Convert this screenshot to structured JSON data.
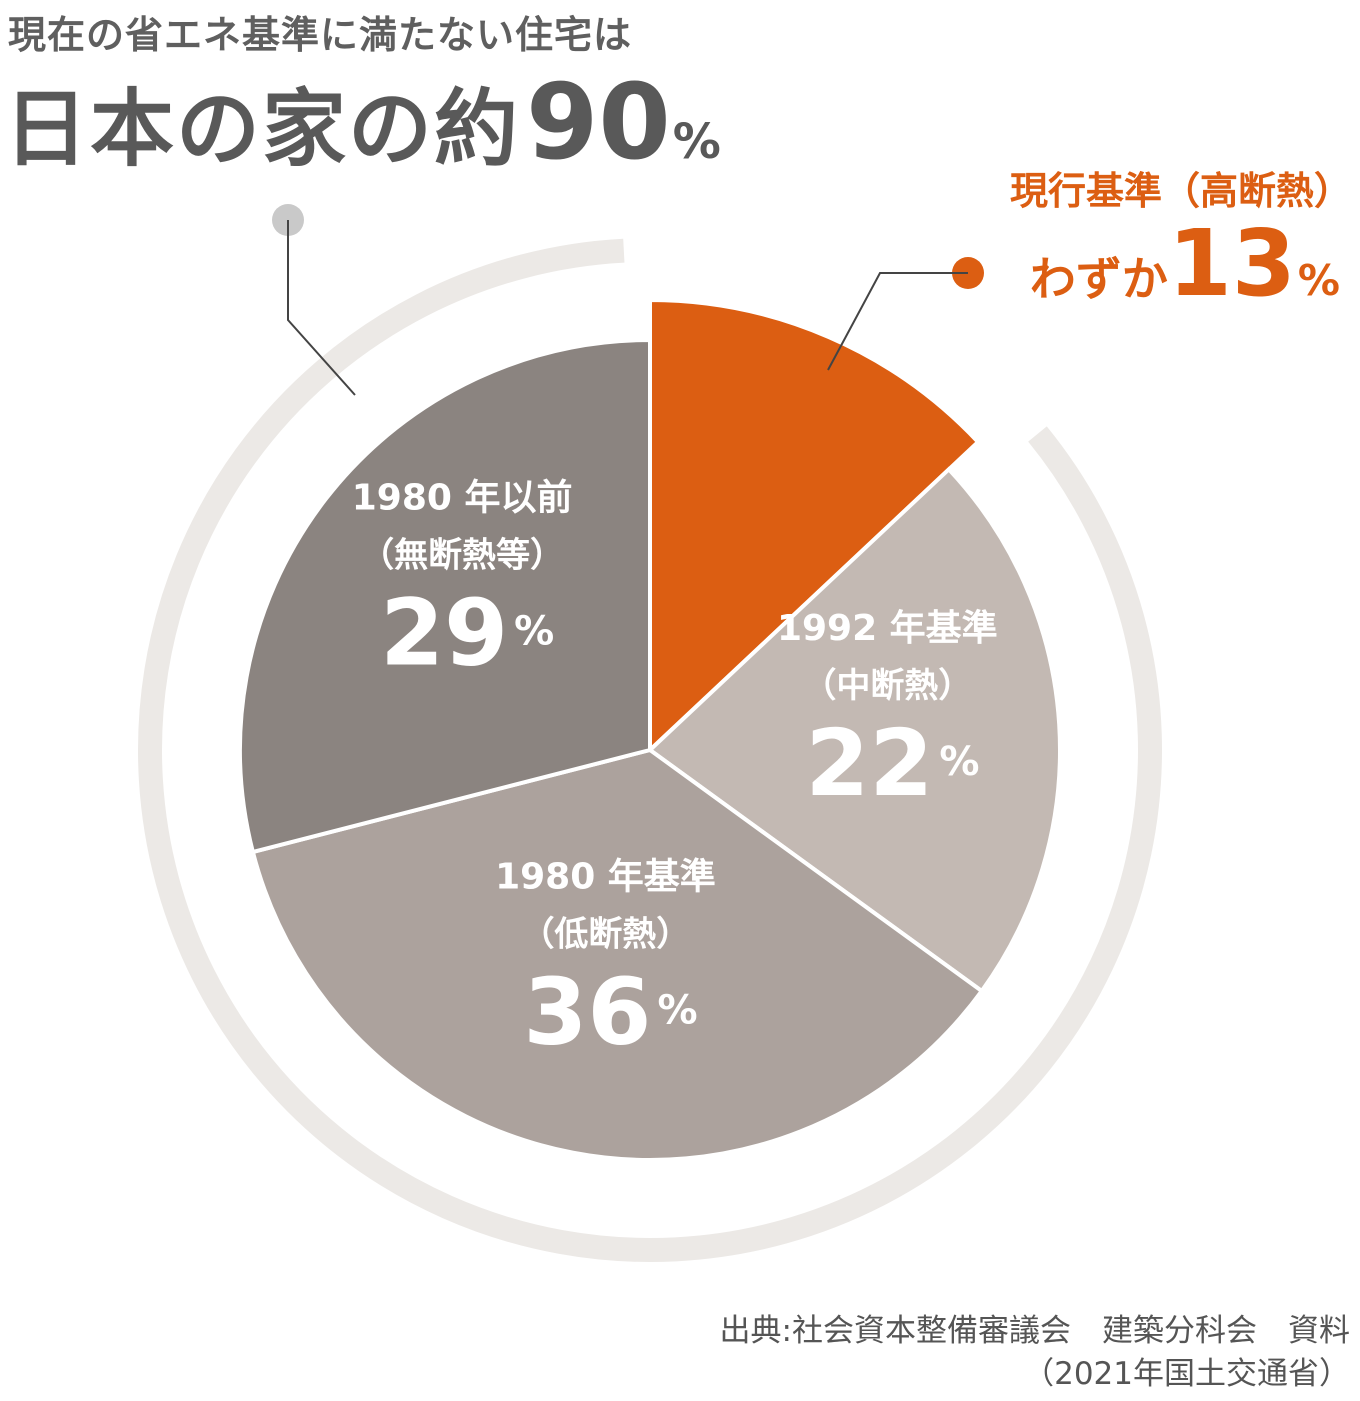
{
  "headline": {
    "top": "現在の省エネ基準に満たない住宅は",
    "main_text": "日本の家の約",
    "main_number": "90",
    "main_unit": "%"
  },
  "callout": {
    "label": "現行基準（高断熱）",
    "prefix": "わずか",
    "number": "13",
    "unit": "%"
  },
  "chart_data": {
    "type": "pie",
    "unit": "%",
    "slices": [
      {
        "label_line1": "",
        "label_line2": "",
        "value": 13,
        "value_text": "",
        "color": "#dc5e12"
      },
      {
        "label_line1": "1992 年基準",
        "label_line2": "（中断熱）",
        "value": 22,
        "value_text": "22",
        "color": "#c3b9b3"
      },
      {
        "label_line1": "1980 年基準",
        "label_line2": "（低断熱）",
        "value": 36,
        "value_text": "36",
        "color": "#aca29d"
      },
      {
        "label_line1": "1980 年以前",
        "label_line2": "（無断熱等）",
        "value": 29,
        "value_text": "29",
        "color": "#8b8480"
      }
    ],
    "ring_color": "#ece9e6",
    "text_color": "#ffffff"
  },
  "source": {
    "line1": "出典:社会資本整備審議会　建築分科会　資料",
    "line2": "（2021年国土交通省）"
  }
}
